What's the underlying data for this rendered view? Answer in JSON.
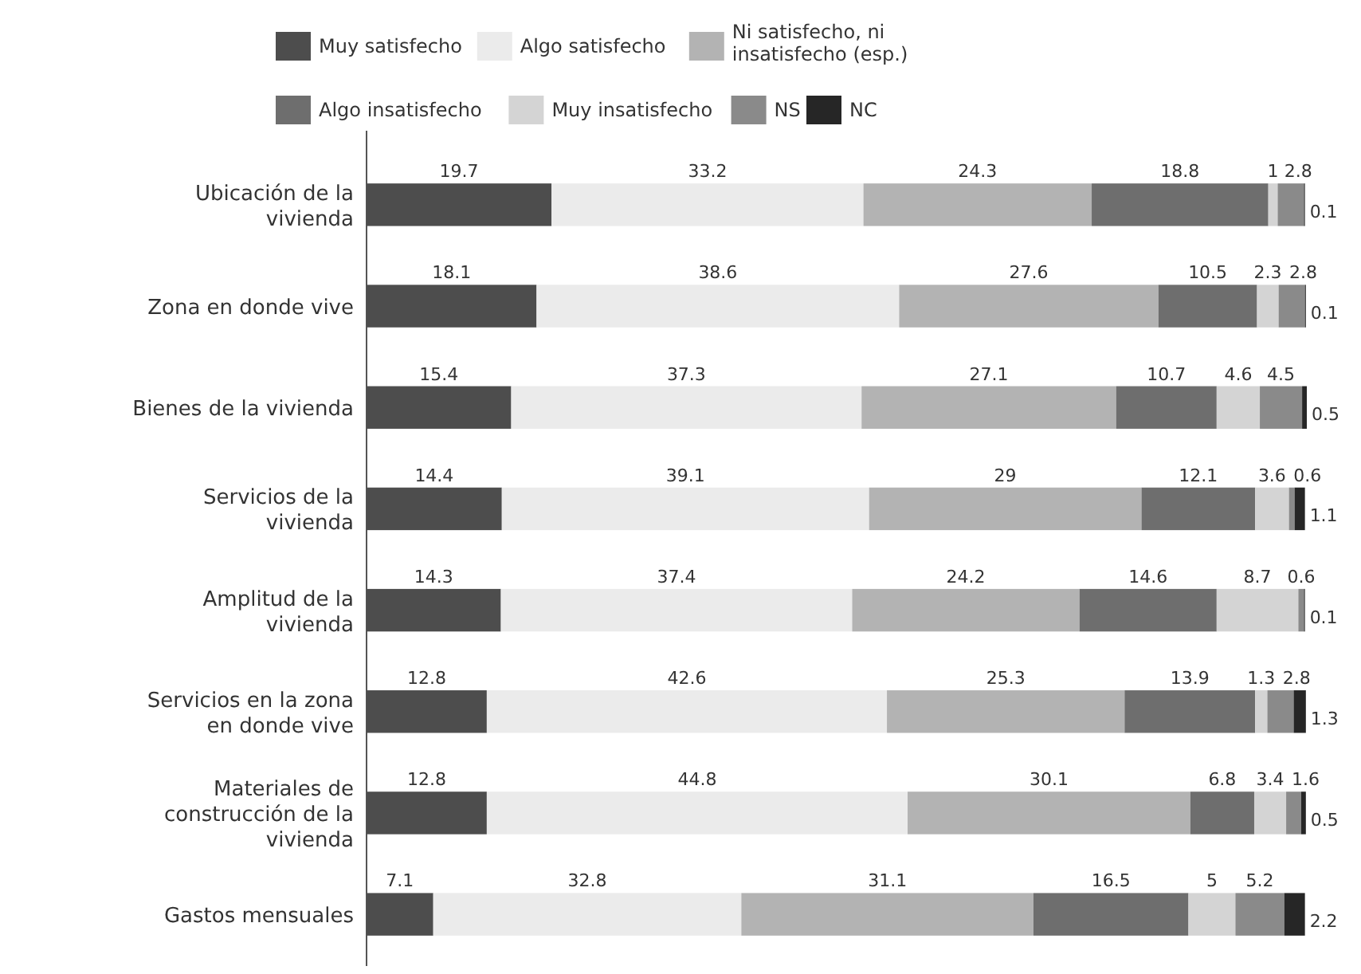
{
  "chart_data": {
    "type": "bar",
    "orientation": "horizontal",
    "stacked": true,
    "data_labels": true,
    "legend": "top",
    "categories": [
      "Ubicación de la vivienda",
      "Zona en donde vive",
      "Bienes de la vivienda",
      "Servicios de la vivienda",
      "Amplitud de la vivienda",
      "Servicios en la zona en donde vive",
      "Materiales de construcción de la vivienda",
      "Gastos mensuales"
    ],
    "series": [
      {
        "name": "Muy satisfecho",
        "color": "#4d4d4d",
        "values": [
          19.7,
          18.1,
          15.4,
          14.4,
          14.3,
          12.8,
          12.8,
          7.1
        ]
      },
      {
        "name": "Algo satisfecho",
        "color": "#ebebeb",
        "values": [
          33.2,
          38.6,
          37.3,
          39.1,
          37.4,
          42.6,
          44.8,
          32.8
        ]
      },
      {
        "name": "Ni satisfecho, ni insatisfecho (esp.)",
        "color": "#b3b3b3",
        "values": [
          24.3,
          27.6,
          27.1,
          29,
          24.2,
          25.3,
          30.1,
          31.1
        ]
      },
      {
        "name": "Algo insatisfecho",
        "color": "#6e6e6e",
        "values": [
          18.8,
          10.5,
          10.7,
          12.1,
          14.6,
          13.9,
          6.8,
          16.5
        ]
      },
      {
        "name": "Muy insatisfecho",
        "color": "#d4d4d4",
        "values": [
          1,
          2.3,
          4.6,
          3.6,
          8.7,
          1.3,
          3.4,
          5
        ]
      },
      {
        "name": "NS",
        "color": "#8a8a8a",
        "values": [
          2.8,
          2.8,
          4.5,
          0.6,
          0.6,
          2.8,
          1.6,
          5.2
        ]
      },
      {
        "name": "NC",
        "color": "#262626",
        "values": [
          0.1,
          0.1,
          0.5,
          1.1,
          0.1,
          1.3,
          0.5,
          2.2
        ]
      }
    ]
  }
}
